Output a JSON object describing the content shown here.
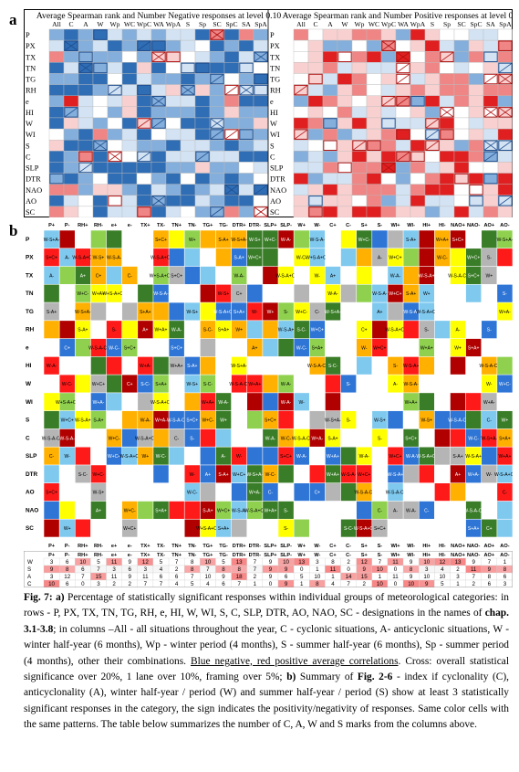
{
  "panel_a": {
    "label": "a",
    "left_title": "Average Spearman rank and Number Negative responses at level 0.10",
    "right_title": "Average Spearman rank and Number Positive responses at level 0.10",
    "columns": [
      "All",
      "C",
      "A",
      "W",
      "Wp",
      "WC",
      "WpC",
      "WA",
      "WpA",
      "S",
      "Sp",
      "SC",
      "SpC",
      "SA",
      "SpA"
    ],
    "rows": [
      "P",
      "PX",
      "TX",
      "TN",
      "TG",
      "RH",
      "e",
      "HI",
      "W",
      "WI",
      "S",
      "C",
      "SLP",
      "DTR",
      "NAO",
      "AO",
      "SC"
    ],
    "colors": {
      "strong_blue": "#2f6db5",
      "mid_blue": "#84aedb",
      "light_blue": "#d3e3f4",
      "white": "#ffffff",
      "light_red": "#f9d0d0",
      "mid_red": "#ef8585",
      "strong_red": "#e02020"
    }
  },
  "panel_b": {
    "label": "b",
    "columns": [
      "P+",
      "P-",
      "RH+",
      "RH-",
      "e+",
      "e-",
      "TX+",
      "TX-",
      "TN+",
      "TN-",
      "TG+",
      "TG-",
      "DTR+",
      "DTR-",
      "SLP+",
      "SLP-",
      "W+",
      "W-",
      "C+",
      "C-",
      "S+",
      "S-",
      "WI+",
      "WI-",
      "HI+",
      "HI-",
      "NAO+",
      "NAO-",
      "AO+",
      "AO-"
    ],
    "rows": [
      "P",
      "PX",
      "TX",
      "TN",
      "TG",
      "RH",
      "e",
      "HI",
      "W",
      "WI",
      "S",
      "C",
      "SLP",
      "DTR",
      "AO",
      "NAO",
      "SC"
    ],
    "cell_codes": [
      "W-S-A-",
      "W-S-A+",
      "S-A+",
      "A+",
      "A-",
      "W-",
      "S-",
      "C-",
      "C+",
      "W-A-",
      "W+A+",
      "W+A-",
      "W-C-",
      "W+C+",
      "W+C-",
      "S+A+",
      "S+C+",
      "S-C-",
      "W-S-A-C-",
      "W-S-A+C-",
      "W+S-A+C+",
      "W-S+A-",
      "W-S+",
      "W+"
    ],
    "colors": {
      "yellow": "#ffff00",
      "orange": "#ffb000",
      "gray": "#b5b5b5",
      "green": "#8fd14f",
      "dark_green": "#3a7d28",
      "red": "#ff1a1a",
      "dark_red": "#b00000",
      "blue": "#2e75d6",
      "light_blue": "#7fc9ef",
      "white": "#ffffff"
    }
  },
  "summary_table": {
    "header": [
      "P+",
      "P-",
      "RH+",
      "RH-",
      "e+",
      "e-",
      "TX+",
      "TX-",
      "TN+",
      "TN-",
      "TG+",
      "TG-",
      "DTR+",
      "DTR-",
      "SLP+",
      "SLP-",
      "W+",
      "W-",
      "C+",
      "C-",
      "S+",
      "S-",
      "WI+",
      "WI-",
      "HI+",
      "HI-",
      "NAO+",
      "NAO-",
      "AO+",
      "AO-"
    ],
    "rows": [
      {
        "label": "W",
        "values": [
          3,
          6,
          10,
          5,
          11,
          9,
          12,
          5,
          7,
          8,
          10,
          5,
          13,
          7,
          9,
          10,
          13,
          3,
          8,
          2,
          12,
          7,
          11,
          9,
          10,
          12,
          13,
          9,
          7,
          1
        ]
      },
      {
        "label": "S",
        "values": [
          9,
          8,
          6,
          7,
          3,
          6,
          3,
          4,
          2,
          8,
          7,
          8,
          8,
          7,
          9,
          9,
          0,
          1,
          11,
          0,
          9,
          10,
          0,
          8,
          3,
          4,
          2,
          11,
          9,
          8
        ]
      },
      {
        "label": "A",
        "values": [
          3,
          12,
          7,
          15,
          11,
          9,
          11,
          6,
          6,
          7,
          10,
          9,
          18,
          2,
          9,
          6,
          5,
          10,
          1,
          14,
          15,
          1,
          11,
          9,
          10,
          10,
          3,
          7,
          8,
          6
        ]
      },
      {
        "label": "C",
        "values": [
          10,
          6,
          0,
          3,
          2,
          2,
          7,
          7,
          4,
          5,
          4,
          6,
          7,
          1,
          0,
          9,
          1,
          8,
          4,
          7,
          2,
          10,
          0,
          10,
          9,
          5,
          1,
          2,
          6,
          3
        ]
      }
    ]
  },
  "caption": {
    "label": "Fig. 7",
    "text_a_label": "a)",
    "text_a": " Percentage of statistically significant responses within individual groups of meteorological categories: in rows - P, PX, TX, TN, TG, RH, e, HI, W, WI, S, C, SLP, DTR, AO, NAO, SC - designations in the names of ",
    "chap": "chap. 3.1-3.8",
    "text_a2": "; in columns –All - all situations throughout the year, C - cyclonic situations, A- anticyclonic situations, W - winter half-year (6 months), Wp - winter period (4 months), S - summer half-year (6 months), Sp - summer period (4 months), other their combinations. ",
    "underlined": "Blue negative, red positive average correlations",
    "text_a3": ". Cross: overall statistical significance over 20%, 1 lane over 10%, framing over 5%; ",
    "text_b_label": "b)",
    "text_b": " Summary of ",
    "fig_ref": "Fig. 2-6",
    "text_b2": " - index if cyclonality (C), anticyclonality (A), winter half-year / period (W) and summer half-year / period (S) show at least 3 statistically significant responses in the category, the sign indicates the positivity/negativity of responses. Same color cells with the same patterns. The table below summarizes the number of C, A, W and S marks from the columns above."
  }
}
